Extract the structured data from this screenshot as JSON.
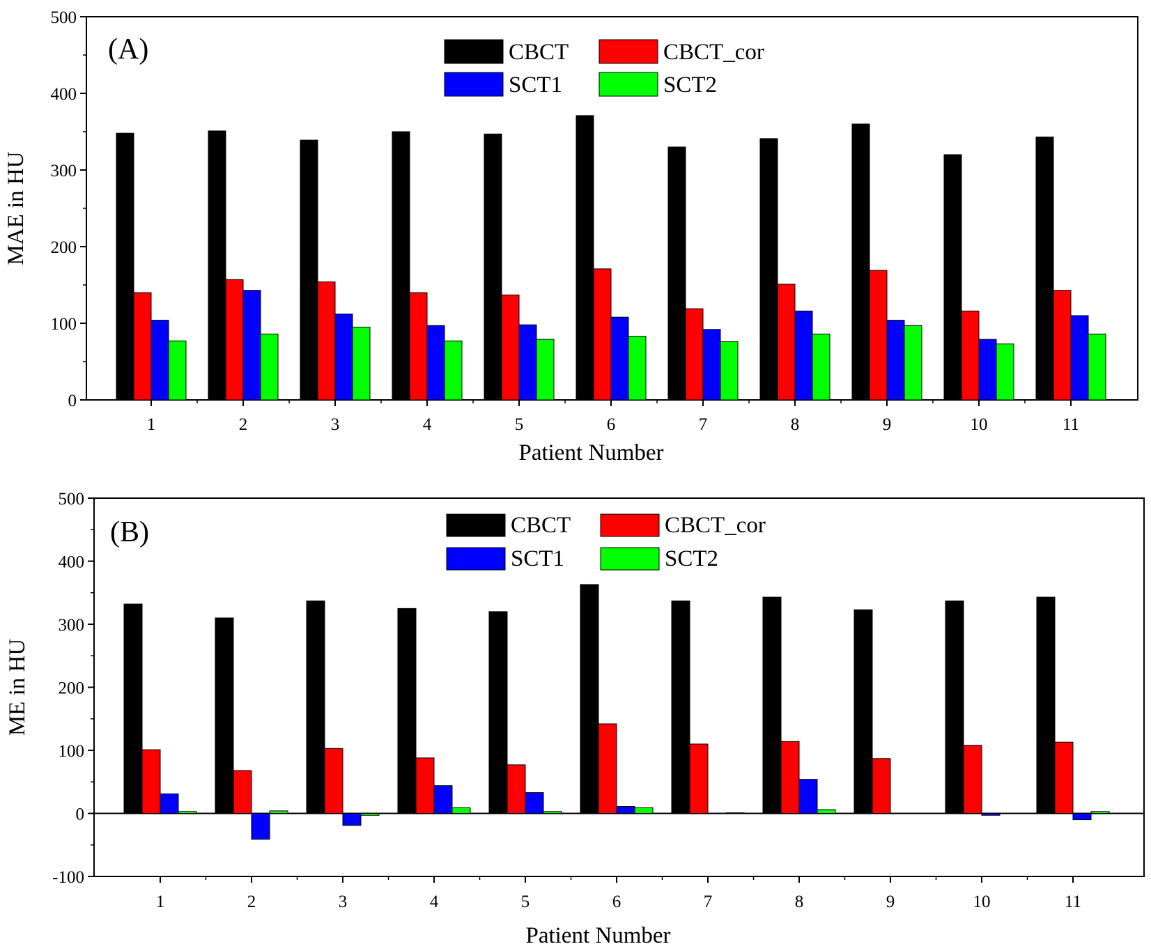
{
  "figure_title": "",
  "chart_data": [
    {
      "panel_label": "(A)",
      "type": "bar",
      "title": "",
      "xlabel": "Patient Number",
      "ylabel": "MAE in HU",
      "ylim": [
        0,
        500
      ],
      "yticks": [
        "0",
        "100",
        "200",
        "300",
        "400",
        "500"
      ],
      "categories": [
        "1",
        "2",
        "3",
        "4",
        "5",
        "6",
        "7",
        "8",
        "9",
        "10",
        "11"
      ],
      "legend_position": "top-center",
      "grid": false,
      "series": [
        {
          "name": "CBCT",
          "color": "#000000",
          "values": [
            348,
            351,
            339,
            350,
            347,
            371,
            330,
            341,
            360,
            320,
            343
          ]
        },
        {
          "name": "CBCT_cor",
          "color": "#ff0000",
          "values": [
            140,
            157,
            154,
            140,
            137,
            171,
            119,
            151,
            169,
            116,
            143
          ]
        },
        {
          "name": "SCT1",
          "color": "#0000ff",
          "values": [
            104,
            143,
            112,
            97,
            98,
            108,
            92,
            116,
            104,
            79,
            110
          ]
        },
        {
          "name": "SCT2",
          "color": "#00ff00",
          "values": [
            77,
            86,
            95,
            77,
            79,
            83,
            76,
            86,
            97,
            73,
            86
          ]
        }
      ]
    },
    {
      "panel_label": "(B)",
      "type": "bar",
      "title": "",
      "xlabel": "Patient Number",
      "ylabel": "ME in HU",
      "ylim": [
        -100,
        500
      ],
      "yticks": [
        "-100",
        "0",
        "100",
        "200",
        "300",
        "400",
        "500"
      ],
      "categories": [
        "1",
        "2",
        "3",
        "4",
        "5",
        "6",
        "7",
        "8",
        "9",
        "10",
        "11"
      ],
      "legend_position": "top-center",
      "grid": false,
      "series": [
        {
          "name": "CBCT",
          "color": "#000000",
          "values": [
            332,
            310,
            337,
            325,
            320,
            363,
            337,
            343,
            323,
            337,
            343
          ]
        },
        {
          "name": "CBCT_cor",
          "color": "#ff0000",
          "values": [
            101,
            68,
            103,
            88,
            77,
            142,
            110,
            114,
            87,
            108,
            113
          ]
        },
        {
          "name": "SCT1",
          "color": "#0000ff",
          "values": [
            31,
            -41,
            -19,
            44,
            33,
            11,
            0,
            54,
            0,
            -3,
            -10
          ]
        },
        {
          "name": "SCT2",
          "color": "#00ff00",
          "values": [
            3,
            4,
            -3,
            9,
            3,
            9,
            1,
            6,
            0,
            0,
            3
          ]
        }
      ]
    }
  ]
}
